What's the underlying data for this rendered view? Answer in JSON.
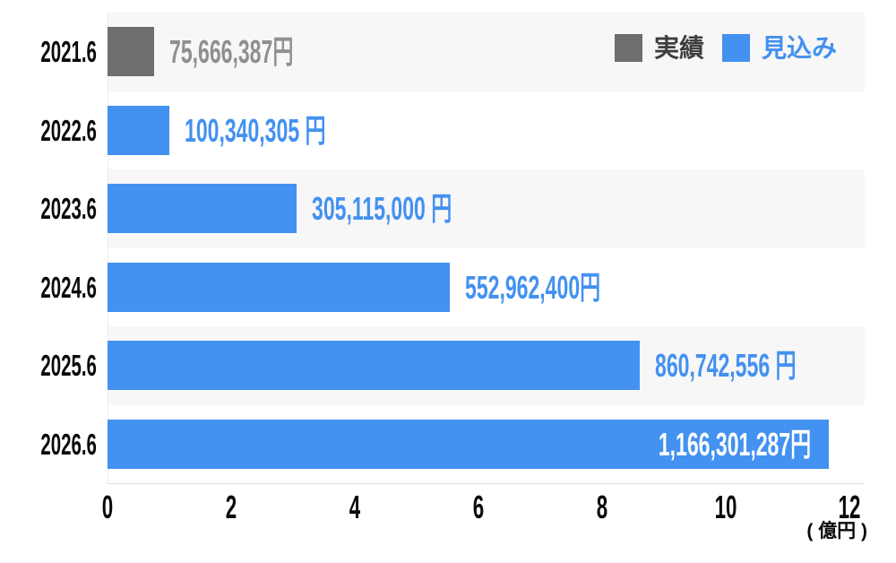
{
  "chart_data": {
    "type": "bar",
    "orientation": "horizontal",
    "title": "",
    "categories": [
      "2021.6",
      "2022.6",
      "2023.6",
      "2024.6",
      "2025.6",
      "2026.6"
    ],
    "values_yen": [
      75666387,
      100340305,
      305115000,
      552962400,
      860742556,
      1166301287
    ],
    "values_oku_yen": [
      0.7567,
      1.0034,
      3.0512,
      5.5296,
      8.6074,
      11.663
    ],
    "bar_series": [
      "実績",
      "見込み",
      "見込み",
      "見込み",
      "見込み",
      "見込み"
    ],
    "bar_labels": [
      "75,666,387円",
      "100,340,305 円",
      "305,115,000 円",
      "552,962,400円",
      "860,742,556 円",
      "1,166,301,287円"
    ],
    "bar_label_positions": [
      "outside",
      "outside",
      "outside",
      "outside",
      "outside",
      "inside"
    ],
    "x_ticks": [
      "0",
      "2",
      "4",
      "6",
      "8",
      "10",
      "12"
    ],
    "xlim": [
      0,
      12
    ],
    "x_unit_label": "( 億円 )",
    "grid": false,
    "row_stripes": true,
    "legend": {
      "position": "top-right",
      "items": [
        {
          "label": "実績",
          "color": "#6e6e6e",
          "text_color": "#3e3e3e"
        },
        {
          "label": "見込み",
          "color": "#4391f0",
          "text_color": "#4391f0"
        }
      ]
    }
  },
  "colors": {
    "actual_bar": "#6e6e6e",
    "forecast_bar": "#4391f0",
    "actual_value_text": "#8f8f8f",
    "forecast_value_text": "#4391f0",
    "inside_value_text": "#ffffff",
    "stripe": "#f7f7f7",
    "axis_line": "#dedede",
    "category_text": "#0a0a0a"
  }
}
